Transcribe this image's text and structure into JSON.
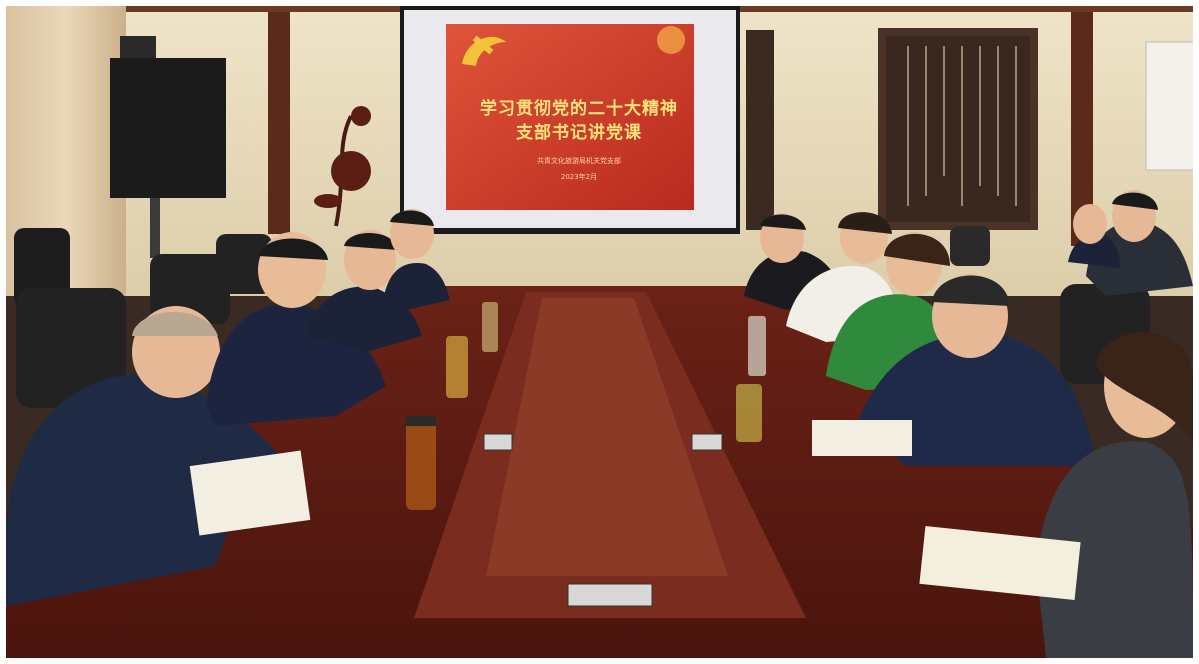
{
  "slide": {
    "title_line1": "学习贯彻党的二十大精神",
    "title_line2": "支部书记讲党课",
    "organization": "共青文化旅游局机关党支部",
    "date": "2023年2月"
  },
  "colors": {
    "wall": "#e8dcc2",
    "table": "#5a1a12",
    "slide_red": "#d8412c",
    "frame": "#ffffff"
  }
}
